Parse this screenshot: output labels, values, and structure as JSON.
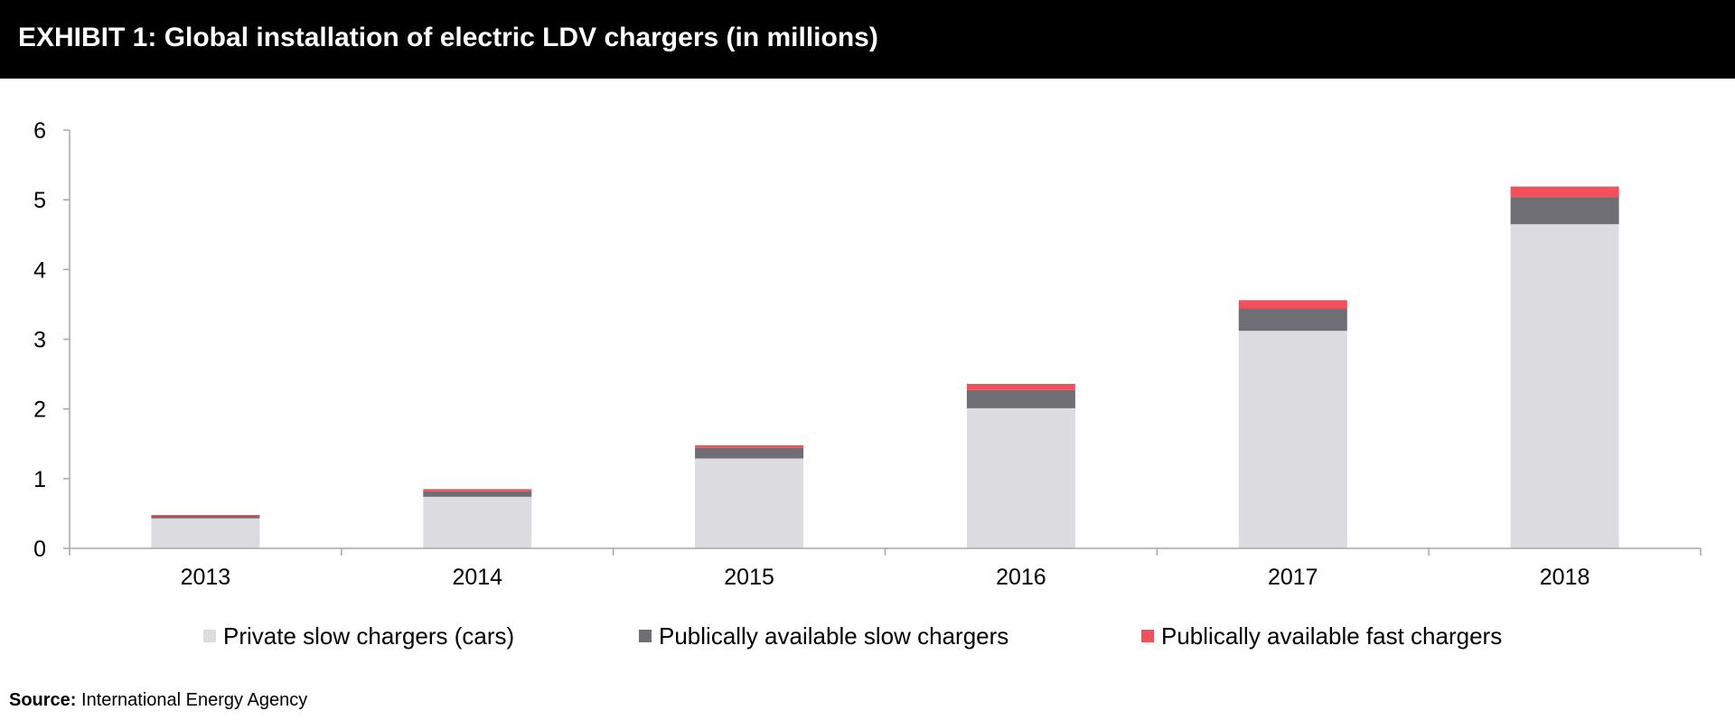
{
  "header": {
    "title": "EXHIBIT 1: Global installation of electric LDV chargers (in millions)"
  },
  "source": {
    "label": "Source:",
    "text": "International Energy Agency"
  },
  "colors": {
    "header_background": "#000000",
    "header_text": "#ffffff",
    "axis": "#a6a6a6"
  },
  "chart_data": {
    "type": "bar",
    "stacked": true,
    "categories": [
      "2013",
      "2014",
      "2015",
      "2016",
      "2017",
      "2018"
    ],
    "series": [
      {
        "name": "Private slow chargers (cars)",
        "color": "#dcdbdf",
        "values": [
          0.43,
          0.74,
          1.29,
          2.01,
          3.12,
          4.65
        ]
      },
      {
        "name": "Publically available slow chargers",
        "color": "#6f6e75",
        "values": [
          0.04,
          0.08,
          0.15,
          0.26,
          0.32,
          0.39
        ]
      },
      {
        "name": "Publically available fast chargers",
        "color": "#f4505c",
        "values": [
          0.01,
          0.03,
          0.04,
          0.09,
          0.12,
          0.15
        ]
      }
    ],
    "ylim": [
      0,
      6
    ],
    "yticks": [
      "0",
      "1",
      "2",
      "3",
      "4",
      "5",
      "6"
    ],
    "legend_position": "bottom",
    "grid": false
  }
}
